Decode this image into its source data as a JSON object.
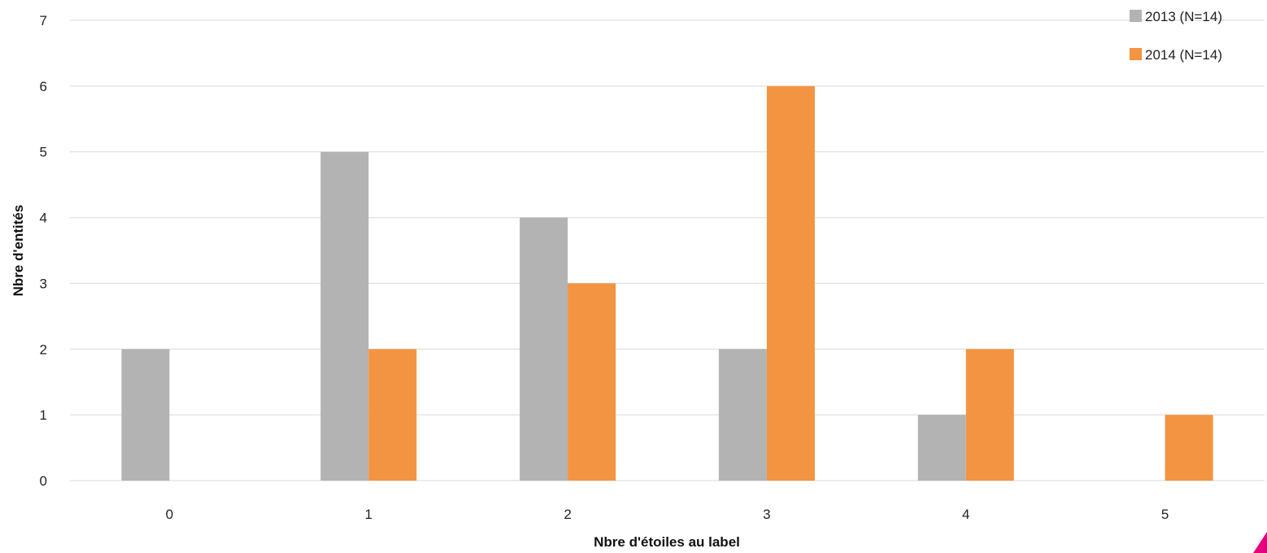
{
  "chart_data": {
    "type": "bar",
    "title": "",
    "xlabel": "Nbre d'étoiles au label",
    "ylabel": "Nbre d'entités",
    "categories": [
      "0",
      "1",
      "2",
      "3",
      "4",
      "5"
    ],
    "series": [
      {
        "name": "2013 (N=14)",
        "color": "#b3b3b3",
        "values": [
          2,
          5,
          4,
          2,
          1,
          0
        ]
      },
      {
        "name": "2014 (N=14)",
        "color": "#f29442",
        "values": [
          0,
          2,
          3,
          6,
          2,
          1
        ]
      }
    ],
    "ylim": [
      0,
      7
    ],
    "yticks": [
      "0",
      "1",
      "2",
      "3",
      "4",
      "5",
      "6",
      "7"
    ],
    "grid": true,
    "legend_position": "top-right",
    "corner_mark_color": "#e6007e"
  }
}
